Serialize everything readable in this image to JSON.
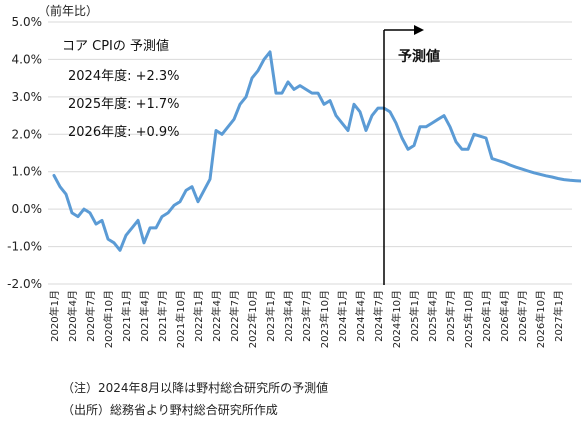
{
  "chart_data": {
    "type": "line",
    "unit_label": "（前年比）",
    "ylim": [
      -2.0,
      5.0
    ],
    "y_ticks": [
      {
        "value": 5.0,
        "label": "5.0%"
      },
      {
        "value": 4.0,
        "label": "4.0%"
      },
      {
        "value": 3.0,
        "label": "3.0%"
      },
      {
        "value": 2.0,
        "label": "2.0%"
      },
      {
        "value": 1.0,
        "label": "1.0%"
      },
      {
        "value": 0.0,
        "label": "0.0%"
      },
      {
        "value": -1.0,
        "label": "-1.0%"
      },
      {
        "value": -2.0,
        "label": "-2.0%"
      }
    ],
    "x_tick_labels": [
      "2020年1月",
      "2020年4月",
      "2020年7月",
      "2020年10月",
      "2021年1月",
      "2021年4月",
      "2021年7月",
      "2021年10月",
      "2022年1月",
      "2022年4月",
      "2022年7月",
      "2022年10月",
      "2023年1月",
      "2023年4月",
      "2023年7月",
      "2023年10月",
      "2024年1月",
      "2024年4月",
      "2024年7月",
      "2024年10月",
      "2025年1月",
      "2025年4月",
      "2025年7月",
      "2025年10月",
      "2026年1月",
      "2026年4月",
      "2026年7月",
      "2026年10月",
      "2027年1月"
    ],
    "start_month": "2020年1月",
    "forecast_start": "2024年8月",
    "series": [
      {
        "color": "#5b9bd5",
        "values": [
          0.9,
          0.6,
          0.4,
          -0.1,
          -0.2,
          0.0,
          -0.1,
          -0.4,
          -0.3,
          -0.8,
          -0.9,
          -1.1,
          -0.7,
          -0.5,
          -0.3,
          -0.9,
          -0.5,
          -0.5,
          -0.2,
          -0.1,
          0.1,
          0.2,
          0.5,
          0.6,
          0.2,
          0.5,
          0.8,
          2.1,
          2.0,
          2.2,
          2.4,
          2.8,
          3.0,
          3.5,
          3.7,
          4.0,
          4.2,
          3.1,
          3.1,
          3.4,
          3.2,
          3.3,
          3.2,
          3.1,
          3.1,
          2.8,
          2.9,
          2.5,
          2.3,
          2.1,
          2.8,
          2.6,
          2.1,
          2.5,
          2.7,
          2.7,
          2.6,
          2.3,
          1.9,
          1.6,
          1.7,
          2.2,
          2.2,
          2.3,
          2.4,
          2.5,
          2.2,
          1.8,
          1.6,
          1.6,
          2.0,
          1.95,
          1.9,
          1.35,
          1.3,
          1.25,
          1.18,
          1.12,
          1.07,
          1.02,
          0.97,
          0.93,
          0.89,
          0.86,
          0.82,
          0.79,
          0.77,
          0.76,
          0.75,
          0.74
        ]
      }
    ],
    "annotations": {
      "title": "コア CPIの 予測値",
      "items": [
        "2024年度: +2.3%",
        "2025年度: +1.7%",
        "2026年度: +0.9%"
      ],
      "forecast_label": "予測値"
    }
  },
  "notes": [
    "（注）2024年8月以降は野村総合研究所の予測値",
    "（出所）総務省より野村総合研究所作成"
  ]
}
